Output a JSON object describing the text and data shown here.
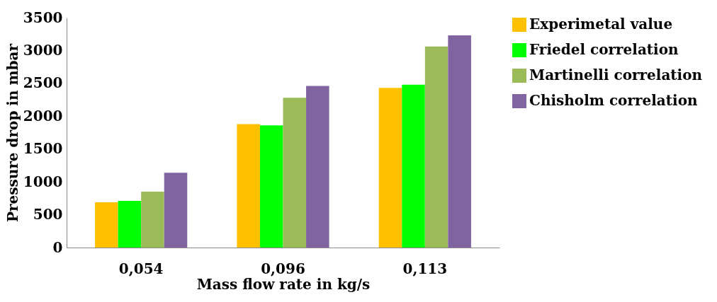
{
  "chart_data": {
    "type": "bar",
    "xlabel": "Mass flow rate in kg/s",
    "ylabel": "Pressure drop in mbar",
    "categories": [
      "0,054",
      "0,096",
      "0,113"
    ],
    "series": [
      {
        "name": "Experimetal value",
        "color": "#ffc000",
        "values": [
          690,
          1880,
          2430
        ]
      },
      {
        "name": "Friedel correlation",
        "color": "#00ff00",
        "values": [
          710,
          1860,
          2480
        ]
      },
      {
        "name": "Martinelli correlation",
        "color": "#9bbb59",
        "values": [
          850,
          2280,
          3060
        ]
      },
      {
        "name": "Chisholm correlation",
        "color": "#8064a2",
        "values": [
          1140,
          2460,
          3230
        ]
      }
    ],
    "ylim": [
      0,
      3500
    ],
    "yticks": [
      0,
      500,
      1000,
      1500,
      2000,
      2500,
      3000,
      3500
    ],
    "grid": false,
    "legend": "right"
  }
}
